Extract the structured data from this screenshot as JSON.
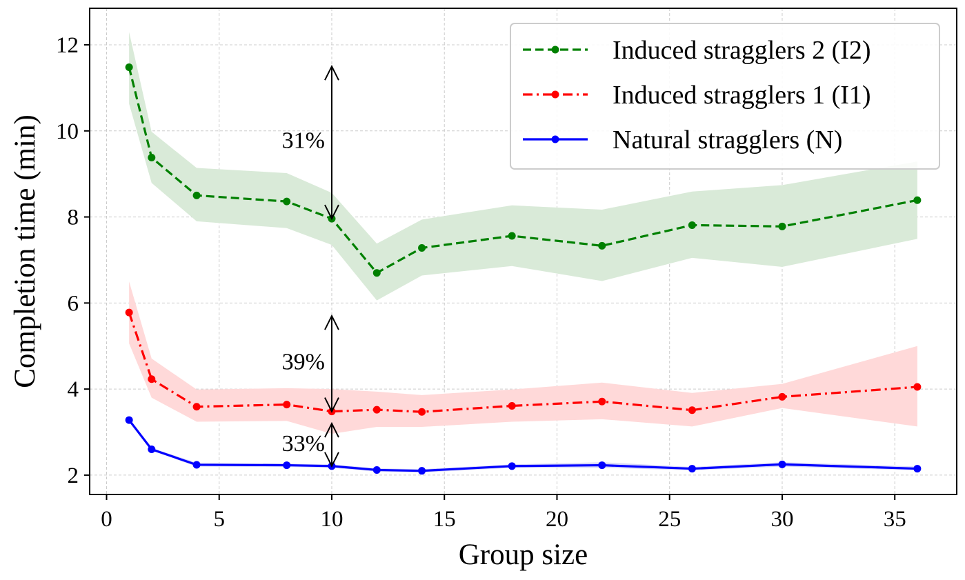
{
  "chart_data": {
    "type": "line",
    "title": "",
    "xlabel": "Group size",
    "ylabel": "Completion time (min)",
    "xlim": [
      -0.75,
      37.75
    ],
    "ylim": [
      1.55,
      12.85
    ],
    "xticks": [
      0,
      5,
      10,
      15,
      20,
      25,
      30,
      35
    ],
    "yticks": [
      2,
      4,
      6,
      8,
      10,
      12
    ],
    "grid": true,
    "legend_position": "top-right",
    "x": [
      1,
      2,
      4,
      8,
      10,
      12,
      14,
      18,
      22,
      26,
      30,
      36
    ],
    "series": [
      {
        "name": "Induced stragglers 2 (I2)",
        "color": "#008000",
        "band_color": "#d9ead8",
        "line_style": "dashed",
        "values": [
          11.48,
          9.38,
          8.5,
          8.36,
          7.96,
          6.7,
          7.28,
          7.56,
          7.33,
          7.81,
          7.78,
          8.39
        ],
        "band_upper": [
          12.3,
          9.98,
          9.14,
          9.02,
          8.56,
          7.38,
          7.94,
          8.27,
          8.17,
          8.59,
          8.74,
          9.29
        ],
        "band_lower": [
          10.63,
          8.79,
          7.9,
          7.74,
          7.35,
          6.06,
          6.64,
          6.86,
          6.51,
          7.05,
          6.84,
          7.49
        ]
      },
      {
        "name": "Induced stragglers 1 (I1)",
        "color": "#ff0000",
        "band_color": "#ffd9d9",
        "line_style": "dashdot",
        "values": [
          5.78,
          4.23,
          3.59,
          3.64,
          3.48,
          3.52,
          3.47,
          3.61,
          3.71,
          3.51,
          3.82,
          4.05
        ],
        "band_upper": [
          6.5,
          4.71,
          3.99,
          4.02,
          4.0,
          3.94,
          3.86,
          3.99,
          4.15,
          3.91,
          4.12,
          5.0
        ],
        "band_lower": [
          5.06,
          3.8,
          3.24,
          3.26,
          2.96,
          3.12,
          3.12,
          3.24,
          3.3,
          3.13,
          3.56,
          3.13
        ]
      },
      {
        "name": "Natural stragglers (N)",
        "color": "#0000ff",
        "band_color": "#d8d8f7",
        "line_style": "solid",
        "values": [
          3.28,
          2.6,
          2.24,
          2.23,
          2.21,
          2.12,
          2.1,
          2.21,
          2.23,
          2.15,
          2.25,
          2.15
        ],
        "band_upper": [
          3.3,
          2.63,
          2.29,
          2.27,
          2.25,
          2.16,
          2.14,
          2.25,
          2.3,
          2.19,
          2.3,
          2.2
        ],
        "band_lower": [
          3.26,
          2.57,
          2.2,
          2.19,
          2.17,
          2.08,
          2.06,
          2.17,
          2.17,
          2.11,
          2.2,
          2.11
        ]
      }
    ],
    "annotations": [
      {
        "text": "31%",
        "x": 10,
        "y_from": 11.5,
        "y_to": 7.96,
        "label_y": 9.8
      },
      {
        "text": "39%",
        "x": 10,
        "y_from": 5.7,
        "y_to": 3.48,
        "label_y": 4.65
      },
      {
        "text": "33%",
        "x": 10,
        "y_from": 3.2,
        "y_to": 2.21,
        "label_y": 2.75
      }
    ]
  }
}
